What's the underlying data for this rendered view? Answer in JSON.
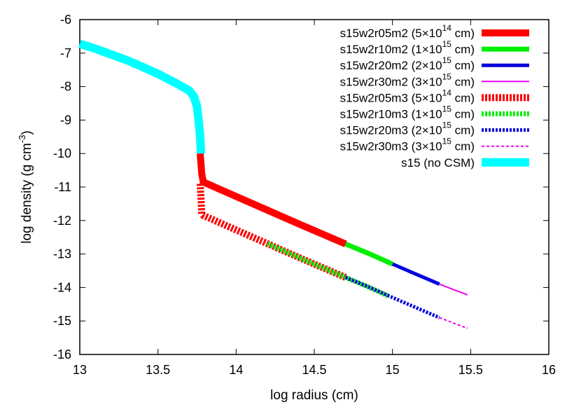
{
  "chart_data": {
    "type": "line",
    "xlabel": "log radius (cm)",
    "ylabel": "log density (g cm",
    "ylabel_sup": "-3",
    "ylabel_close": ")",
    "xlim": [
      13,
      16
    ],
    "ylim": [
      -16,
      -6
    ],
    "xticks": [
      "13",
      "13.5",
      "14",
      "14.5",
      "15",
      "15.5",
      "16"
    ],
    "yticks": [
      "-6",
      "-7",
      "-8",
      "-9",
      "-10",
      "-11",
      "-12",
      "-13",
      "-14",
      "-15",
      "-16"
    ],
    "grid": false,
    "legend_position": "top-right",
    "series": [
      {
        "name": "s15w2r05m2",
        "radius": "(5×10",
        "exp": "14",
        "unit": " cm)",
        "color": "#ff0000",
        "style": "solid",
        "width": 10,
        "x": [
          13.77,
          13.78,
          13.79,
          14.0,
          14.2,
          14.4,
          14.6,
          14.7
        ],
        "y": [
          -10.0,
          -10.6,
          -10.85,
          -11.28,
          -11.69,
          -12.1,
          -12.5,
          -12.7
        ]
      },
      {
        "name": "s15w2r10m2",
        "radius": "(1×10",
        "exp": "15",
        "unit": " cm)",
        "color": "#00ee00",
        "style": "solid",
        "width": 7,
        "x": [
          14.7,
          14.85,
          15.0
        ],
        "y": [
          -12.7,
          -12.99,
          -13.3
        ]
      },
      {
        "name": "s15w2r20m2",
        "radius": "(2×10",
        "exp": "15",
        "unit": " cm)",
        "color": "#0000dd",
        "style": "solid",
        "width": 5,
        "x": [
          15.0,
          15.15,
          15.3
        ],
        "y": [
          -13.3,
          -13.6,
          -13.9
        ]
      },
      {
        "name": "s15w2r30m2",
        "radius": "(3×10",
        "exp": "15",
        "unit": " cm)",
        "color": "#ee00ee",
        "style": "solid",
        "width": 2,
        "x": [
          15.3,
          15.4,
          15.48
        ],
        "y": [
          -13.9,
          -14.08,
          -14.22
        ]
      },
      {
        "name": "s15w2r05m3",
        "radius": "(5×10",
        "exp": "14",
        "unit": " cm)",
        "color": "#ff0000",
        "style": "dotted",
        "width": 10,
        "x": [
          13.77,
          13.78,
          13.79,
          14.0,
          14.2,
          14.4,
          14.6,
          14.7
        ],
        "y": [
          -10.9,
          -11.8,
          -11.85,
          -12.28,
          -12.69,
          -13.1,
          -13.5,
          -13.7
        ]
      },
      {
        "name": "s15w2r10m3",
        "radius": "(1×10",
        "exp": "15",
        "unit": " cm)",
        "color": "#00ee00",
        "style": "dotted",
        "width": 7,
        "x": [
          14.2,
          14.4,
          14.6,
          14.7,
          14.85,
          14.97
        ],
        "y": [
          -12.69,
          -13.1,
          -13.5,
          -13.7,
          -13.99,
          -14.25
        ]
      },
      {
        "name": "s15w2r20m3",
        "radius": "(2×10",
        "exp": "15",
        "unit": " cm)",
        "color": "#0000dd",
        "style": "dotted",
        "width": 5,
        "x": [
          14.7,
          14.85,
          15.0,
          15.15,
          15.3
        ],
        "y": [
          -13.7,
          -13.99,
          -14.3,
          -14.6,
          -14.9
        ]
      },
      {
        "name": "s15w2r30m3",
        "radius": "(3×10",
        "exp": "15",
        "unit": " cm)",
        "color": "#ee00ee",
        "style": "dashed",
        "width": 2,
        "x": [
          15.3,
          15.4,
          15.48
        ],
        "y": [
          -14.9,
          -15.08,
          -15.22
        ]
      },
      {
        "name": "s15 (no CSM)",
        "radius": "",
        "exp": "",
        "unit": "",
        "color": "#00ffff",
        "style": "solid",
        "width": 12,
        "x": [
          13.0,
          13.1,
          13.2,
          13.3,
          13.4,
          13.5,
          13.6,
          13.7,
          13.73,
          13.75,
          13.76,
          13.77,
          13.775
        ],
        "y": [
          -6.72,
          -6.87,
          -7.04,
          -7.21,
          -7.41,
          -7.62,
          -7.86,
          -8.12,
          -8.3,
          -8.6,
          -9.0,
          -9.5,
          -10.0
        ]
      }
    ]
  }
}
